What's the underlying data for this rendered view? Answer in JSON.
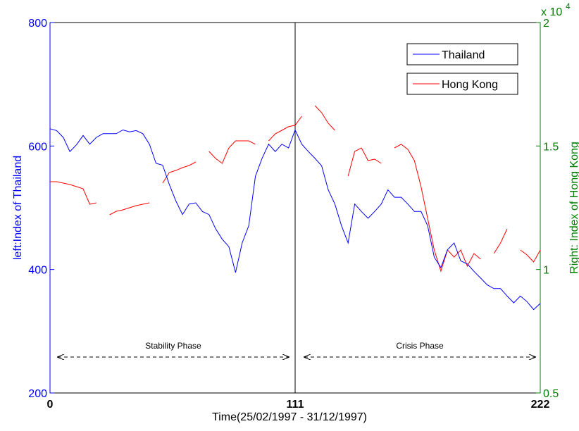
{
  "chart_data": {
    "type": "line",
    "xlabel": "Time(25/02/1997 - 31/12/1997)",
    "ylabel": "left:Index of Thailand",
    "y2label": "Right: Index of Hong Kong",
    "y2_multiplier": "x 10",
    "y2_multiplier_exponent": "4",
    "annotations": [
      "Stability Phase",
      "Crisis Phase"
    ],
    "xlim": [
      0,
      222
    ],
    "xticks": [
      0,
      111,
      222
    ],
    "ylim": [
      200,
      800
    ],
    "yticks": [
      200,
      400,
      600,
      800
    ],
    "y2lim": [
      5000,
      20000
    ],
    "y2ticks": [
      {
        "value": 5000,
        "label": "0.5"
      },
      {
        "value": 10000,
        "label": "1"
      },
      {
        "value": 15000,
        "label": "1.5"
      },
      {
        "value": 20000,
        "label": "2"
      }
    ],
    "ycolor": "#0000ff",
    "y2color": "#008000",
    "legend": "upper right",
    "grid": false,
    "x": [
      0,
      3,
      6,
      9,
      12,
      15,
      18,
      21,
      24,
      27,
      30,
      33,
      36,
      39,
      42,
      45,
      48,
      51,
      54,
      57,
      60,
      63,
      66,
      69,
      72,
      75,
      78,
      81,
      84,
      87,
      90,
      93,
      96,
      99,
      102,
      105,
      108,
      111,
      114,
      117,
      120,
      123,
      126,
      129,
      132,
      135,
      138,
      141,
      144,
      147,
      150,
      153,
      156,
      159,
      162,
      165,
      168,
      171,
      174,
      177,
      180,
      183,
      186,
      189,
      192,
      195,
      198,
      201,
      204,
      207,
      210,
      213,
      216,
      219,
      222
    ],
    "series": [
      {
        "name": "Thailand",
        "color": "#0000ff",
        "axis": "y",
        "values": [
          628,
          625,
          614,
          591,
          602,
          617,
          603,
          614,
          620,
          620,
          620,
          626,
          623,
          625,
          620,
          603,
          572,
          569,
          538,
          511,
          489,
          506,
          508,
          494,
          489,
          466,
          449,
          437,
          395,
          443,
          471,
          551,
          580,
          603,
          591,
          603,
          597,
          626,
          603,
          591,
          580,
          568,
          529,
          506,
          471,
          443,
          506,
          494,
          483,
          494,
          506,
          529,
          517,
          517,
          506,
          494,
          494,
          471,
          420,
          403,
          432,
          443,
          414,
          409,
          397,
          386,
          375,
          369,
          369,
          357,
          346,
          357,
          348,
          335,
          345
        ]
      },
      {
        "name": "Hong Kong",
        "color": "#ff0000",
        "axis": "y2",
        "values": [
          13556,
          13556,
          13499,
          13442,
          13356,
          13271,
          12643,
          12700,
          null,
          12215,
          12358,
          12415,
          12501,
          12586,
          12643,
          12700,
          null,
          13499,
          13927,
          14012,
          14126,
          14212,
          14354,
          null,
          14782,
          14497,
          14298,
          14925,
          15210,
          15210,
          15210,
          15068,
          null,
          15210,
          15495,
          15638,
          15781,
          15838,
          16208,
          null,
          16636,
          16351,
          15923,
          15638,
          null,
          13784,
          14782,
          14925,
          14411,
          14468,
          14298,
          null,
          14925,
          15068,
          14868,
          14411,
          13356,
          12073,
          10790,
          9934,
          10790,
          10504,
          10790,
          10134,
          10647,
          10419,
          null,
          10647,
          11075,
          11645,
          null,
          10790,
          10590,
          10305,
          10790
        ]
      }
    ]
  }
}
